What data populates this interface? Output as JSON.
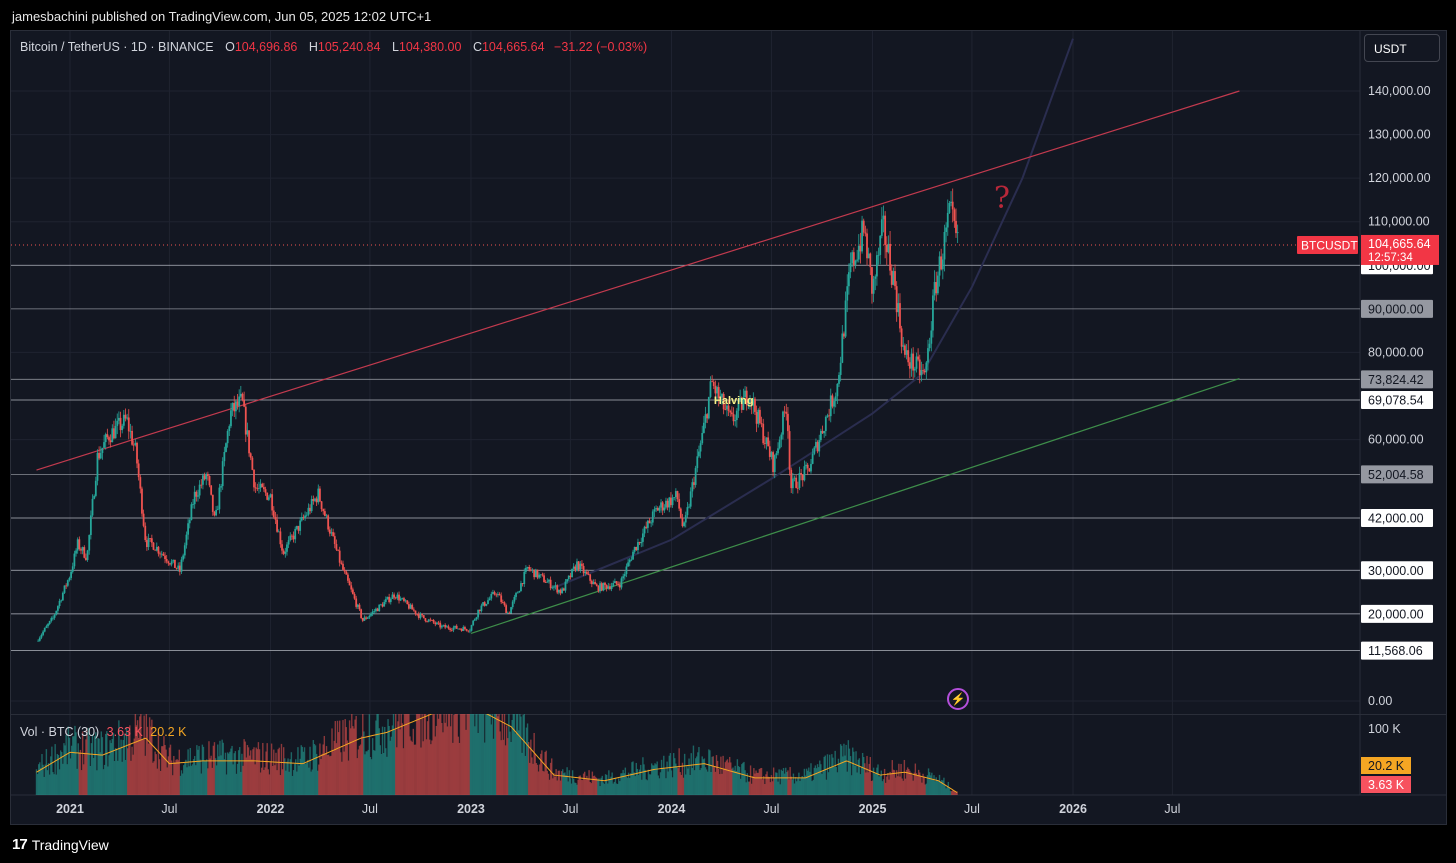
{
  "header": {
    "published": "jamesbachini published on TradingView.com, Jun 05, 2025 12:02 UTC+1"
  },
  "legend": {
    "symbol": "Bitcoin / TetherUS · 1D · BINANCE",
    "open_k": "O",
    "open_v": "104,696.86",
    "high_k": "H",
    "high_v": "105,240.84",
    "low_k": "L",
    "low_v": "104,380.00",
    "close_k": "C",
    "close_v": "104,665.64",
    "change": "−31.22 (−0.03%)"
  },
  "volume_legend": {
    "label": "Vol · BTC (30)",
    "value": "3.63 K",
    "ma": "20.2 K"
  },
  "currency_button": "USDT",
  "brand": {
    "logo": "17",
    "name": "TradingView"
  },
  "colors": {
    "background": "#131722",
    "up": "#26a69a",
    "down": "#ef5350",
    "resistance": "#c23a4e",
    "support": "#3e8e4a",
    "curve": "#2a2d4f"
  },
  "chart_data": {
    "type": "candlestick",
    "symbol": "BTCUSDT",
    "interval": "1D",
    "y_scale": "linear",
    "ylim": [
      0,
      150000
    ],
    "y_ticks": [
      "0.00",
      "20,000.00",
      "30,000.00",
      "60,000.00",
      "80,000.00",
      "110,000.00",
      "120,000.00",
      "130,000.00",
      "140,000.00"
    ],
    "x_ticks": [
      "2021",
      "Jul",
      "2022",
      "Jul",
      "2023",
      "Jul",
      "2024",
      "Jul",
      "2025",
      "Jul",
      "2026",
      "Jul"
    ],
    "x_tick_dates": [
      "2021-01-01",
      "2021-07-01",
      "2022-01-01",
      "2022-07-01",
      "2023-01-01",
      "2023-07-01",
      "2024-01-01",
      "2024-07-01",
      "2025-01-01",
      "2025-07-01",
      "2026-01-01",
      "2026-07-01"
    ],
    "close_series": [
      [
        "2020-11-01",
        13800
      ],
      [
        "2020-12-01",
        19000
      ],
      [
        "2021-01-01",
        29000
      ],
      [
        "2021-01-15",
        36000
      ],
      [
        "2021-02-01",
        33000
      ],
      [
        "2021-02-20",
        56000
      ],
      [
        "2021-03-13",
        61000
      ],
      [
        "2021-04-14",
        64500
      ],
      [
        "2021-05-01",
        57000
      ],
      [
        "2021-05-19",
        36500
      ],
      [
        "2021-06-01",
        36000
      ],
      [
        "2021-07-20",
        29800
      ],
      [
        "2021-08-15",
        47000
      ],
      [
        "2021-09-07",
        52000
      ],
      [
        "2021-09-22",
        40700
      ],
      [
        "2021-10-20",
        66000
      ],
      [
        "2021-11-10",
        68800
      ],
      [
        "2021-12-04",
        49000
      ],
      [
        "2022-01-01",
        47000
      ],
      [
        "2022-01-24",
        34000
      ],
      [
        "2022-03-29",
        47500
      ],
      [
        "2022-05-10",
        31000
      ],
      [
        "2022-06-18",
        18500
      ],
      [
        "2022-08-15",
        24500
      ],
      [
        "2022-09-30",
        19500
      ],
      [
        "2022-11-09",
        17000
      ],
      [
        "2022-12-30",
        16500
      ],
      [
        "2023-01-15",
        21000
      ],
      [
        "2023-02-16",
        25000
      ],
      [
        "2023-03-10",
        20000
      ],
      [
        "2023-04-14",
        30500
      ],
      [
        "2023-06-15",
        25000
      ],
      [
        "2023-07-13",
        31500
      ],
      [
        "2023-08-18",
        26000
      ],
      [
        "2023-09-30",
        27000
      ],
      [
        "2023-10-24",
        34500
      ],
      [
        "2023-12-05",
        44000
      ],
      [
        "2024-01-11",
        47000
      ],
      [
        "2024-01-23",
        39000
      ],
      [
        "2024-02-28",
        62000
      ],
      [
        "2024-03-14",
        73000
      ],
      [
        "2024-04-19",
        64000
      ],
      [
        "2024-05-21",
        71000
      ],
      [
        "2024-07-05",
        54000
      ],
      [
        "2024-07-29",
        68500
      ],
      [
        "2024-08-05",
        49000
      ],
      [
        "2024-09-06",
        53000
      ],
      [
        "2024-10-29",
        72500
      ],
      [
        "2024-11-22",
        99500
      ],
      [
        "2024-12-17",
        108000
      ],
      [
        "2025-01-01",
        94000
      ],
      [
        "2025-01-20",
        108500
      ],
      [
        "2025-02-10",
        96000
      ],
      [
        "2025-02-28",
        79000
      ],
      [
        "2025-03-10",
        78000
      ],
      [
        "2025-04-07",
        74500
      ],
      [
        "2025-04-25",
        95000
      ],
      [
        "2025-05-10",
        104000
      ],
      [
        "2025-05-22",
        111900
      ],
      [
        "2025-06-05",
        104665.64
      ]
    ],
    "horizontal_levels": [
      {
        "value": 100000,
        "label": "100,000.00",
        "style": "white"
      },
      {
        "value": 90000,
        "label": "90,000.00",
        "style": "gray"
      },
      {
        "value": 73824.42,
        "label": "73,824.42",
        "style": "gray"
      },
      {
        "value": 69078.54,
        "label": "69,078.54",
        "style": "white"
      },
      {
        "value": 52004.58,
        "label": "52,004.58",
        "style": "gray"
      },
      {
        "value": 42000,
        "label": "42,000.00",
        "style": "white"
      },
      {
        "value": 30000,
        "label": "30,000.00",
        "style": "white"
      },
      {
        "value": 20000,
        "label": "20,000.00",
        "style": "white"
      },
      {
        "value": 11568.06,
        "label": "11,568.06",
        "style": "white"
      }
    ],
    "resistance_line": {
      "from": [
        "2020-11-01",
        53000
      ],
      "to": [
        "2026-10-31",
        140000
      ]
    },
    "support_line": {
      "from": [
        "2023-01-01",
        15500
      ],
      "to": [
        "2026-10-31",
        74000
      ]
    },
    "curve": [
      [
        "2023-06-01",
        26000
      ],
      [
        "2024-01-01",
        37000
      ],
      [
        "2024-07-01",
        51000
      ],
      [
        "2025-01-01",
        66000
      ],
      [
        "2025-04-01",
        75000
      ],
      [
        "2025-07-01",
        95000
      ],
      [
        "2025-10-01",
        120000
      ],
      [
        "2026-01-01",
        152000
      ]
    ],
    "annotations": [
      {
        "text": "Halving",
        "date": "2024-04-20",
        "value": 69078.54
      },
      {
        "text": "?",
        "date": "2025-08-10",
        "value": 115000
      }
    ],
    "last_price": {
      "symbol": "BTCUSDT",
      "value": "104,665.64",
      "countdown": "12:57:34"
    },
    "volume": {
      "y_tick": "100 K",
      "ma_label": "20.2 K",
      "last_label": "3.63 K",
      "series": [
        [
          "2020-11-01",
          40
        ],
        [
          "2021-01-01",
          75
        ],
        [
          "2021-03-01",
          70
        ],
        [
          "2021-05-19",
          100
        ],
        [
          "2021-07-01",
          55
        ],
        [
          "2021-09-01",
          60
        ],
        [
          "2021-12-01",
          60
        ],
        [
          "2022-03-01",
          55
        ],
        [
          "2022-06-15",
          100
        ],
        [
          "2022-08-01",
          110
        ],
        [
          "2022-11-10",
          150
        ],
        [
          "2023-01-15",
          150
        ],
        [
          "2023-03-15",
          120
        ],
        [
          "2023-06-01",
          35
        ],
        [
          "2023-09-01",
          25
        ],
        [
          "2023-12-01",
          45
        ],
        [
          "2024-03-01",
          55
        ],
        [
          "2024-06-01",
          30
        ],
        [
          "2024-09-01",
          30
        ],
        [
          "2024-11-15",
          60
        ],
        [
          "2025-01-15",
          35
        ],
        [
          "2025-03-01",
          40
        ],
        [
          "2025-05-01",
          25
        ],
        [
          "2025-06-05",
          3.63
        ]
      ]
    }
  }
}
